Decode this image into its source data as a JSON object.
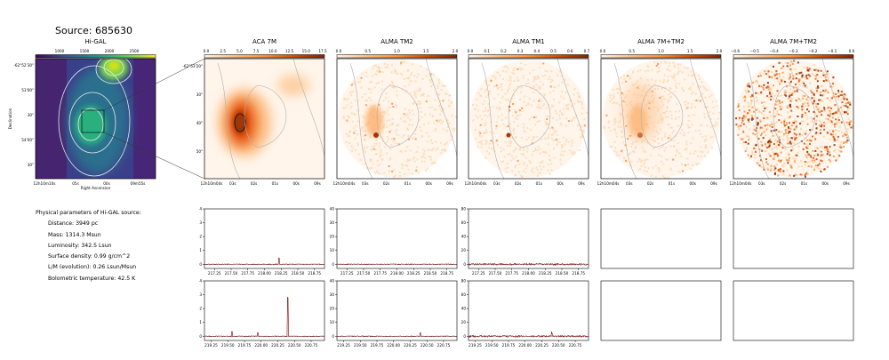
{
  "page": {
    "title": "Source: 685630"
  },
  "panels": [
    {
      "id": "higal",
      "title": "Hi-GAL",
      "colorbar": {
        "ticks": [
          "1000",
          "1500",
          "2000",
          "2500"
        ],
        "colors": [
          "#440154",
          "#3b528b",
          "#21918c",
          "#5ec962",
          "#fde725"
        ]
      },
      "xticks": [
        "12h10m10s",
        "05s",
        "00s",
        "09m55s"
      ],
      "yticks": [
        "-62°52'30\"",
        "53'00\"",
        "30\"",
        "54'00\"",
        "30\""
      ],
      "xlabel": "Right Ascension",
      "ylabel": "Declination"
    },
    {
      "id": "aca7m",
      "title": "ACA 7M",
      "colorbar": {
        "ticks": [
          "0.0",
          "2.5",
          "5.0",
          "7.5",
          "10.0",
          "12.5",
          "15.0",
          "17.5"
        ],
        "colors": [
          "#fff5eb",
          "#fdbe85",
          "#fd8d3c",
          "#d94801",
          "#7f2704"
        ]
      },
      "xticks": [
        "12h10m04s",
        "03s",
        "02s",
        "01s",
        "00s",
        "09s"
      ],
      "yticks": [
        "-62°53'20\"",
        "30\"",
        "40\"",
        "50\""
      ]
    },
    {
      "id": "almatm2",
      "title": "ALMA TM2",
      "colorbar": {
        "ticks": [
          "0.0",
          "0.5",
          "1.0",
          "1.5",
          "2.0"
        ],
        "colors": [
          "#fff5eb",
          "#fdbe85",
          "#fd8d3c",
          "#d94801",
          "#7f2704"
        ]
      },
      "xticks": [
        "12h10m04s",
        "03s",
        "02s",
        "01s",
        "00s",
        "09s"
      ]
    },
    {
      "id": "almatm1",
      "title": "ALMA TM1",
      "colorbar": {
        "ticks": [
          "0.0",
          "0.1",
          "0.2",
          "0.3",
          "0.4",
          "0.5",
          "0.6",
          "0.7"
        ],
        "colors": [
          "#fff5eb",
          "#fdbe85",
          "#fd8d3c",
          "#d94801",
          "#7f2704"
        ]
      },
      "xticks": [
        "12h10m04s",
        "03s",
        "02s",
        "01s",
        "00s",
        "09s"
      ]
    },
    {
      "id": "alma7mtm2",
      "title": "ALMA 7M+TM2",
      "colorbar": {
        "ticks": [
          "0.0",
          "0.5",
          "1.0",
          "1.5",
          "2.0"
        ],
        "colors": [
          "#fff5eb",
          "#fdbe85",
          "#fd8d3c",
          "#d94801",
          "#7f2704"
        ]
      },
      "xticks": [
        "12h10m04s",
        "03s",
        "02s",
        "01s",
        "00s",
        "09s"
      ]
    },
    {
      "id": "alma7mtm2b",
      "title": "ALMA 7M+TM2",
      "colorbar": {
        "ticks": [
          "−0.6",
          "−0.5",
          "−0.4",
          "−0.3",
          "−0.2",
          "−0.1",
          "0.0"
        ],
        "colors": [
          "#fff5eb",
          "#fdbe85",
          "#fd8d3c",
          "#d94801",
          "#7f2704"
        ]
      },
      "xticks": [
        "12h10m04s",
        "03s",
        "02s",
        "01s",
        "00s",
        "09s"
      ]
    }
  ],
  "parameters": {
    "heading": "Physical parameters of Hi-GAL source:",
    "items": [
      "Distance: 3949 pc",
      "Mass: 1314.3 Msun",
      "Luminosity: 342.5 Lsun",
      "Surface density: 0.99 g/cm^2",
      "L/M (evolution): 0.26 Lsun/Msun",
      "Bolometric temperature: 42.5 K"
    ]
  },
  "chart_data": [
    {
      "type": "line",
      "name": "ACA 7M spectrum (row 1)",
      "xlim": [
        217.1,
        218.9
      ],
      "ylim": [
        -0.3,
        4
      ],
      "xticks": [
        217.25,
        217.5,
        217.75,
        218.0,
        218.25,
        218.5,
        218.75
      ],
      "yticks": [
        0,
        1,
        2,
        3,
        4
      ],
      "noise": 0.03,
      "peaks": [
        {
          "x": 218.22,
          "y": 0.45
        }
      ]
    },
    {
      "type": "line",
      "name": "ALMA TM2 spectrum (row 1)",
      "xlim": [
        217.1,
        218.9
      ],
      "ylim": [
        -3,
        40
      ],
      "xticks": [
        217.25,
        217.5,
        217.75,
        218.0,
        218.25,
        218.5,
        218.75
      ],
      "yticks": [
        0,
        10,
        20,
        30,
        40
      ],
      "noise": 0.3,
      "peaks": []
    },
    {
      "type": "line",
      "name": "ALMA TM1 spectrum (row 1)",
      "xlim": [
        217.1,
        218.9
      ],
      "ylim": [
        -6,
        80
      ],
      "xticks": [
        217.25,
        217.5,
        217.75,
        218.0,
        218.25,
        218.5,
        218.75
      ],
      "yticks": [
        0,
        20,
        40,
        60,
        80
      ],
      "noise": 1.2,
      "peaks": []
    },
    {
      "type": "line",
      "name": "ACA 7M spectrum (row 2)",
      "xlim": [
        219.15,
        220.95
      ],
      "ylim": [
        -0.3,
        4
      ],
      "xticks": [
        219.25,
        219.5,
        219.75,
        220.0,
        220.25,
        220.5,
        220.75
      ],
      "yticks": [
        0,
        1,
        2,
        3,
        4
      ],
      "noise": 0.03,
      "peaks": [
        {
          "x": 219.56,
          "y": 0.35
        },
        {
          "x": 219.95,
          "y": 0.25
        },
        {
          "x": 220.4,
          "y": 2.8
        }
      ]
    },
    {
      "type": "line",
      "name": "ALMA TM2 spectrum (row 2)",
      "xlim": [
        219.15,
        220.95
      ],
      "ylim": [
        -3,
        40
      ],
      "xticks": [
        219.25,
        219.5,
        219.75,
        220.0,
        220.25,
        220.5,
        220.75
      ],
      "yticks": [
        0,
        10,
        20,
        30,
        40
      ],
      "noise": 0.3,
      "peaks": [
        {
          "x": 220.4,
          "y": 2.5
        }
      ]
    },
    {
      "type": "line",
      "name": "ALMA TM1 spectrum (row 2)",
      "xlim": [
        219.15,
        220.95
      ],
      "ylim": [
        -6,
        80
      ],
      "xticks": [
        219.25,
        219.5,
        219.75,
        220.0,
        220.25,
        220.5,
        220.75
      ],
      "yticks": [
        0,
        20,
        40,
        60,
        80
      ],
      "noise": 1.2,
      "peaks": [
        {
          "x": 220.4,
          "y": 6
        }
      ]
    }
  ]
}
